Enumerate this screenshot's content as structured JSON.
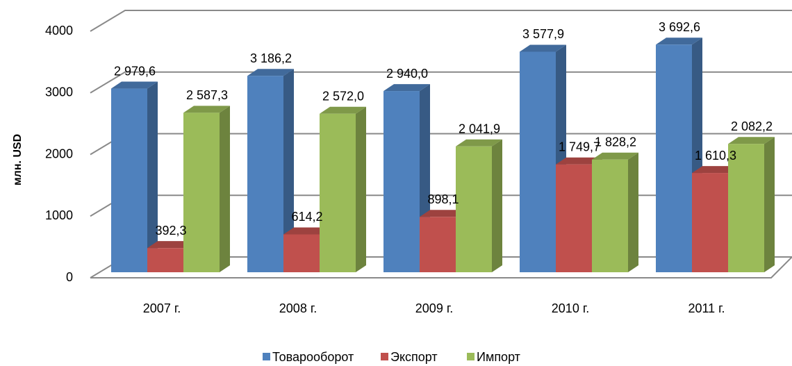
{
  "chart_data": {
    "type": "bar3d",
    "y_label": "млн. USD",
    "categories": [
      "2007 г.",
      "2008 г.",
      "2009 г.",
      "2010 г.",
      "2011 г."
    ],
    "series": [
      {
        "name": "Товарооборот",
        "color": "#4f81bd",
        "values": [
          2979.6,
          3186.2,
          2940.0,
          3577.9,
          3692.6
        ],
        "value_labels": [
          "2 979,6",
          "3 186,2",
          "2 940,0",
          "3 577,9",
          "3 692,6"
        ]
      },
      {
        "name": "Экспорт",
        "color": "#c0504d",
        "values": [
          392.3,
          614.2,
          898.1,
          1749.7,
          1610.3
        ],
        "value_labels": [
          "392,3",
          "614,2",
          "898,1",
          "1 749,7",
          "1 610,3"
        ]
      },
      {
        "name": "Импорт",
        "color": "#9bbb59",
        "values": [
          2587.3,
          2572.0,
          2041.9,
          1828.2,
          2082.2
        ],
        "value_labels": [
          "2 587,3",
          "2 572,0",
          "2 041,9",
          "1 828,2",
          "2 082,2"
        ]
      }
    ],
    "ylim": [
      0,
      4000
    ],
    "yticks": [
      0,
      1000,
      2000,
      3000,
      4000
    ],
    "grid": true,
    "legend": "bottom"
  }
}
